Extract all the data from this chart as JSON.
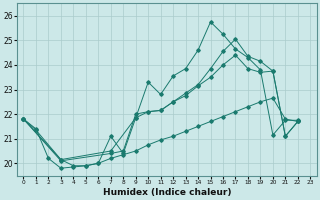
{
  "xlabel": "Humidex (Indice chaleur)",
  "background_color": "#cce8e8",
  "grid_color": "#aacccc",
  "line_color": "#1a7a6e",
  "xlim": [
    -0.5,
    23.5
  ],
  "ylim": [
    19.5,
    26.5
  ],
  "ytick_values": [
    20,
    21,
    22,
    23,
    24,
    25,
    26
  ],
  "figsize": [
    3.2,
    2.0
  ],
  "dpi": 100,
  "line1_x": [
    0,
    1,
    2,
    3,
    4,
    5,
    6,
    7,
    8,
    9,
    10,
    11,
    12,
    13,
    14,
    15,
    16,
    17,
    18,
    19,
    20,
    21,
    22
  ],
  "line1_y": [
    21.8,
    21.4,
    20.2,
    19.8,
    19.85,
    19.9,
    20.0,
    21.1,
    20.4,
    21.85,
    23.3,
    22.8,
    23.55,
    23.85,
    24.6,
    25.75,
    25.25,
    24.65,
    24.3,
    23.8,
    21.15,
    21.75,
    21.75
  ],
  "line2_x": [
    0,
    3,
    7,
    8,
    9,
    10,
    11,
    12,
    13,
    14,
    15,
    16,
    17,
    18,
    19,
    20,
    21,
    22
  ],
  "line2_y": [
    21.8,
    20.1,
    20.4,
    20.5,
    22.0,
    22.1,
    22.15,
    22.5,
    22.75,
    23.15,
    23.5,
    24.0,
    24.4,
    23.85,
    23.7,
    23.75,
    21.1,
    21.7
  ],
  "line3_x": [
    0,
    3,
    7,
    9,
    10,
    11,
    12,
    13,
    14,
    15,
    16,
    17,
    18,
    19,
    20,
    21,
    22
  ],
  "line3_y": [
    21.8,
    20.15,
    20.5,
    21.85,
    22.1,
    22.15,
    22.5,
    22.85,
    23.2,
    23.85,
    24.55,
    25.05,
    24.35,
    24.15,
    23.75,
    21.1,
    21.7
  ],
  "line4_x": [
    0,
    1,
    3,
    4,
    5,
    6,
    7,
    8,
    9,
    10,
    11,
    12,
    13,
    14,
    15,
    16,
    17,
    18,
    19,
    20,
    21,
    22
  ],
  "line4_y": [
    21.8,
    21.35,
    20.15,
    19.9,
    19.9,
    20.0,
    20.2,
    20.35,
    20.5,
    20.75,
    20.95,
    21.1,
    21.3,
    21.5,
    21.7,
    21.9,
    22.1,
    22.3,
    22.5,
    22.65,
    21.8,
    21.7
  ]
}
